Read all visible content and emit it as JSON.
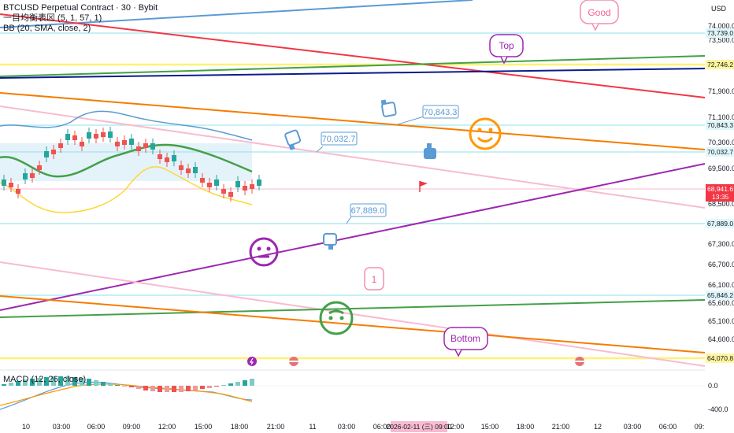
{
  "legend": {
    "title": "BTCUSD Perpetual Contract · 30 · Bybit",
    "ma_indicator": "一目均衡表⊠ (5, 1, 57, 1)",
    "bb_indicator": "BB (20, SMA, close, 2)"
  },
  "macd_label": "MACD (12, 26, close)",
  "currency": "USD",
  "price_axis": {
    "ticks": [
      "74,000.0",
      "73,500.0",
      "71,900.0",
      "71,100.0",
      "70,300.0",
      "69,500.0",
      "68,500.0",
      "67,300.0",
      "66,700.0",
      "66,100.0",
      "65,600.0",
      "65,100.0",
      "64,600.0"
    ],
    "macd_ticks": [
      "0.0",
      "-400.0"
    ],
    "price_labels": [
      {
        "text": "73,739.0",
        "color": "#e0f7fa"
      },
      {
        "text": "72,746.2",
        "color": "#fff59d"
      },
      {
        "text": "70,843.3",
        "color": "#e0f7fa"
      },
      {
        "text": "70,032.7",
        "color": "#e0f7fa"
      },
      {
        "text": "68,941.6",
        "sub": "13:35",
        "color": "#f23645"
      },
      {
        "text": "67,889.0",
        "color": "#e0f7fa"
      },
      {
        "text": "65,846.2",
        "color": "#e0f7fa"
      },
      {
        "text": "64,070.8",
        "color": "#fff59d"
      }
    ]
  },
  "time_axis": {
    "ticks": [
      "10",
      "03:00",
      "06:00",
      "09:00",
      "12:00",
      "15:00",
      "18:00",
      "21:00",
      "11",
      "03:00",
      "06:00",
      "12:00",
      "15:00",
      "18:00",
      "21:00",
      "12",
      "03:00",
      "06:00",
      "09:"
    ],
    "highlight": "2026-02-11 (三)  09:00"
  },
  "annotations": {
    "good": "Good",
    "top": "Top",
    "bottom": "Bottom",
    "one": "1",
    "label_70843": "70,843.3",
    "label_70032": "70,032.7",
    "label_67889": "67,889.0"
  },
  "colors": {
    "red_line": "#f23645",
    "green_line": "#43a047",
    "navy_line": "#0d1b8c",
    "orange_line": "#f57c00",
    "purple_line": "#9c27b0",
    "pink_line": "#f8bbd0",
    "blue_line": "#5b9bd5",
    "yellow_line": "#fff176",
    "cyan_line": "#b2ebf2",
    "smiley_orange": "#ff9800",
    "smiley_purple": "#9c27b0",
    "smiley_green": "#43a047"
  },
  "icons": [
    "thumbs-down-icon",
    "thumbs-up-icon",
    "flag-icon",
    "lightning-icon",
    "us-flag-icon"
  ]
}
